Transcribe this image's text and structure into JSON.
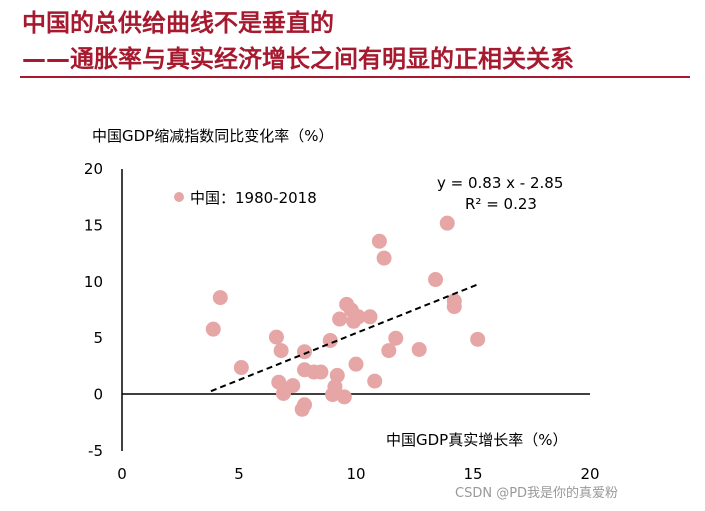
{
  "header": {
    "title_line1": "中国的总供给曲线不是垂直的",
    "title_line2": "——通胀率与真实经济增长之间有明显的正相关关系"
  },
  "colors": {
    "title": "#a6192e",
    "point": "#e6a6a6",
    "axis": "#000000"
  },
  "watermark": "CSDN @PD我是你的真爱粉",
  "chart_data": {
    "type": "scatter",
    "title": "",
    "ylabel": "中国GDP缩减指数同比变化率（%）",
    "xlabel": "中国GDP真实增长率（%）",
    "xlim": [
      0,
      20
    ],
    "ylim": [
      -5,
      20
    ],
    "xticks": [
      "0",
      "5",
      "10",
      "15",
      "20"
    ],
    "yticks": [
      "20",
      "15",
      "10",
      "5",
      "0",
      "-5"
    ],
    "legend": "中国：1980-2018",
    "legend_position": "top-left",
    "equation": "y = 0.83 x - 2.85",
    "r_squared": "R² = 0.23",
    "trendline": {
      "slope": 0.83,
      "intercept": -2.85,
      "x_range": [
        3.8,
        15.2
      ]
    },
    "points": [
      {
        "x": 3.9,
        "y": 5.8
      },
      {
        "x": 4.2,
        "y": 8.6
      },
      {
        "x": 5.1,
        "y": 2.4
      },
      {
        "x": 6.6,
        "y": 5.1
      },
      {
        "x": 6.7,
        "y": 1.1
      },
      {
        "x": 6.8,
        "y": 3.9
      },
      {
        "x": 6.9,
        "y": 0.1
      },
      {
        "x": 7.3,
        "y": 0.8
      },
      {
        "x": 7.7,
        "y": -1.3
      },
      {
        "x": 7.8,
        "y": -0.9
      },
      {
        "x": 7.8,
        "y": 2.2
      },
      {
        "x": 7.8,
        "y": 3.8
      },
      {
        "x": 8.2,
        "y": 2.0
      },
      {
        "x": 8.5,
        "y": 2.0
      },
      {
        "x": 8.9,
        "y": 4.8
      },
      {
        "x": 9.0,
        "y": 0.0
      },
      {
        "x": 9.1,
        "y": 0.7
      },
      {
        "x": 9.2,
        "y": 1.7
      },
      {
        "x": 9.3,
        "y": 6.7
      },
      {
        "x": 9.5,
        "y": -0.2
      },
      {
        "x": 9.6,
        "y": 8.0
      },
      {
        "x": 9.8,
        "y": 7.5
      },
      {
        "x": 9.9,
        "y": 6.5
      },
      {
        "x": 10.0,
        "y": 2.7
      },
      {
        "x": 10.1,
        "y": 6.9
      },
      {
        "x": 10.6,
        "y": 6.9
      },
      {
        "x": 10.8,
        "y": 1.2
      },
      {
        "x": 11.0,
        "y": 13.6
      },
      {
        "x": 11.2,
        "y": 12.1
      },
      {
        "x": 11.4,
        "y": 3.9
      },
      {
        "x": 11.7,
        "y": 5.0
      },
      {
        "x": 12.7,
        "y": 4.0
      },
      {
        "x": 13.4,
        "y": 10.2
      },
      {
        "x": 13.9,
        "y": 15.2
      },
      {
        "x": 14.2,
        "y": 8.3
      },
      {
        "x": 14.2,
        "y": 7.8
      },
      {
        "x": 15.2,
        "y": 4.9
      }
    ]
  }
}
